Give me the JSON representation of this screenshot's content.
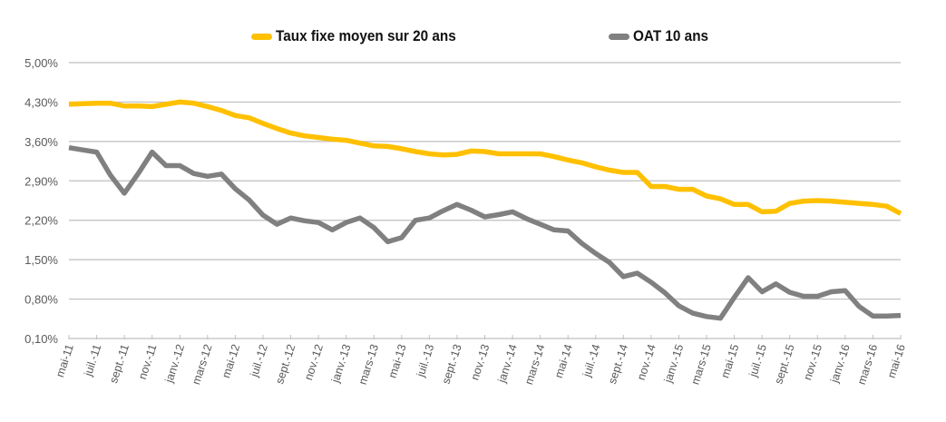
{
  "chart_data": {
    "type": "line",
    "title": "",
    "xlabel": "",
    "ylabel": "",
    "ylim": [
      0.1,
      5.0
    ],
    "yticks": [
      0.1,
      0.8,
      1.5,
      2.2,
      2.9,
      3.6,
      4.3,
      5.0
    ],
    "ytick_labels": [
      "0,10%",
      "0,80%",
      "1,50%",
      "2,20%",
      "2,90%",
      "3,60%",
      "4,30%",
      "5,00%"
    ],
    "grid": true,
    "legend_position": "top",
    "x_tick_labels": [
      "mai-11",
      "juil.-11",
      "sept.-11",
      "nov.-11",
      "janv.-12",
      "mars-12",
      "mai-12",
      "juil.-12",
      "sept.-12",
      "nov.-12",
      "janv.-13",
      "mars-13",
      "mai-13",
      "juil.-13",
      "sept.-13",
      "nov.-13",
      "janv.-14",
      "mars-14",
      "mai-14",
      "juil.-14",
      "sept.-14",
      "nov.-14",
      "janv.-15",
      "mars-15",
      "mai-15",
      "juil.-15",
      "sept.-15",
      "nov.-15",
      "janv.-16",
      "mars-16",
      "mai-16"
    ],
    "x_points": 61,
    "x_start": "mai-11",
    "x_end": "mai-16",
    "x_frequency": "monthly",
    "series": [
      {
        "name": "Taux fixe moyen sur 20 ans",
        "color": "#FFC000",
        "values": [
          4.26,
          4.27,
          4.28,
          4.28,
          4.23,
          4.23,
          4.22,
          4.26,
          4.3,
          4.28,
          4.22,
          4.15,
          4.06,
          4.02,
          3.92,
          3.83,
          3.75,
          3.7,
          3.67,
          3.64,
          3.62,
          3.57,
          3.52,
          3.51,
          3.47,
          3.42,
          3.38,
          3.36,
          3.37,
          3.43,
          3.42,
          3.38,
          3.38,
          3.38,
          3.38,
          3.33,
          3.27,
          3.22,
          3.15,
          3.09,
          3.05,
          3.05,
          2.8,
          2.8,
          2.75,
          2.75,
          2.63,
          2.58,
          2.48,
          2.48,
          2.35,
          2.36,
          2.5,
          2.54,
          2.55,
          2.54,
          2.52,
          2.5,
          2.48,
          2.45,
          2.32
        ]
      },
      {
        "name": "OAT 10 ans",
        "color": "#808080",
        "values": [
          3.49,
          3.45,
          3.41,
          3.0,
          2.68,
          3.03,
          3.41,
          3.17,
          3.17,
          3.03,
          2.98,
          3.02,
          2.76,
          2.56,
          2.29,
          2.13,
          2.24,
          2.19,
          2.16,
          2.03,
          2.16,
          2.24,
          2.07,
          1.82,
          1.89,
          2.2,
          2.24,
          2.37,
          2.48,
          2.38,
          2.26,
          2.3,
          2.35,
          2.23,
          2.13,
          2.03,
          2.01,
          1.79,
          1.61,
          1.45,
          1.2,
          1.26,
          1.1,
          0.91,
          0.68,
          0.55,
          0.49,
          0.46,
          0.83,
          1.18,
          0.93,
          1.07,
          0.92,
          0.85,
          0.85,
          0.93,
          0.95,
          0.67,
          0.5,
          0.5,
          0.51
        ]
      }
    ]
  },
  "legend": {
    "items": [
      {
        "label": "Taux fixe moyen sur 20 ans",
        "color": "#FFC000"
      },
      {
        "label": "OAT 10 ans",
        "color": "#808080"
      }
    ]
  },
  "colors": {
    "gridline": "#BFBFBF",
    "axis": "#BFBFBF",
    "tick_label": "#595959"
  }
}
